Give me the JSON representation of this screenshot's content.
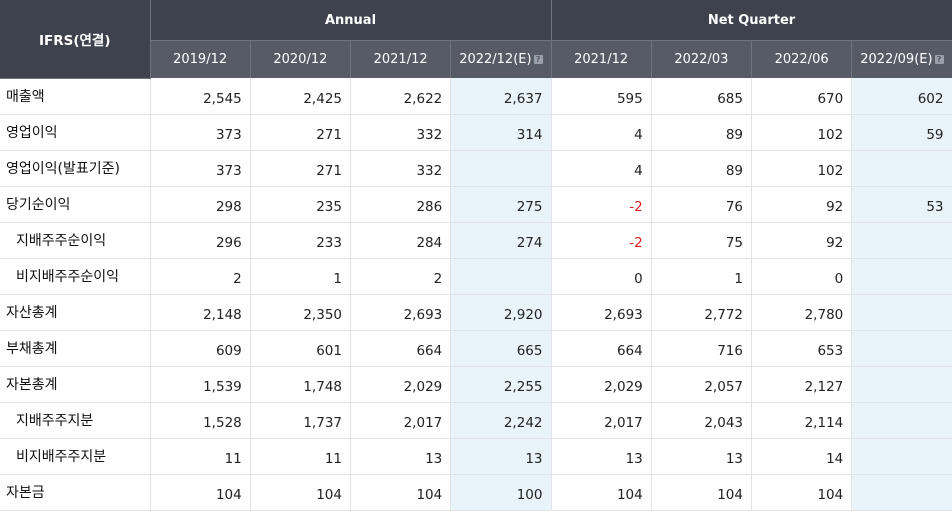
{
  "header": {
    "corner": "IFRS(연결)",
    "groups": [
      {
        "label": "Annual"
      },
      {
        "label": "Net Quarter"
      }
    ],
    "columns": [
      {
        "label": "2019/12",
        "estimate": false
      },
      {
        "label": "2020/12",
        "estimate": false
      },
      {
        "label": "2021/12",
        "estimate": false
      },
      {
        "label": "2022/12(E)",
        "estimate": true
      },
      {
        "label": "2021/12",
        "estimate": false
      },
      {
        "label": "2022/03",
        "estimate": false
      },
      {
        "label": "2022/06",
        "estimate": false
      },
      {
        "label": "2022/09(E)",
        "estimate": true
      }
    ],
    "help_icon": "?"
  },
  "rows": [
    {
      "label": "매출액",
      "sub": false,
      "values": [
        "2,545",
        "2,425",
        "2,622",
        "2,637",
        "595",
        "685",
        "670",
        "602"
      ]
    },
    {
      "label": "영업이익",
      "sub": false,
      "values": [
        "373",
        "271",
        "332",
        "314",
        "4",
        "89",
        "102",
        "59"
      ]
    },
    {
      "label": "영업이익(발표기준)",
      "sub": false,
      "values": [
        "373",
        "271",
        "332",
        "",
        "4",
        "89",
        "102",
        ""
      ]
    },
    {
      "label": "당기순이익",
      "sub": false,
      "values": [
        "298",
        "235",
        "286",
        "275",
        "-2",
        "76",
        "92",
        "53"
      ]
    },
    {
      "label": "지배주주순이익",
      "sub": true,
      "values": [
        "296",
        "233",
        "284",
        "274",
        "-2",
        "75",
        "92",
        ""
      ]
    },
    {
      "label": "비지배주주순이익",
      "sub": true,
      "values": [
        "2",
        "1",
        "2",
        "",
        "0",
        "1",
        "0",
        ""
      ]
    },
    {
      "label": "자산총계",
      "sub": false,
      "values": [
        "2,148",
        "2,350",
        "2,693",
        "2,920",
        "2,693",
        "2,772",
        "2,780",
        ""
      ]
    },
    {
      "label": "부채총계",
      "sub": false,
      "values": [
        "609",
        "601",
        "664",
        "665",
        "664",
        "716",
        "653",
        ""
      ]
    },
    {
      "label": "자본총계",
      "sub": false,
      "values": [
        "1,539",
        "1,748",
        "2,029",
        "2,255",
        "2,029",
        "2,057",
        "2,127",
        ""
      ]
    },
    {
      "label": "지배주주지분",
      "sub": true,
      "values": [
        "1,528",
        "1,737",
        "2,017",
        "2,242",
        "2,017",
        "2,043",
        "2,114",
        ""
      ]
    },
    {
      "label": "비지배주주지분",
      "sub": true,
      "values": [
        "11",
        "11",
        "13",
        "13",
        "13",
        "13",
        "14",
        ""
      ]
    },
    {
      "label": "자본금",
      "sub": false,
      "values": [
        "104",
        "104",
        "104",
        "100",
        "104",
        "104",
        "104",
        ""
      ]
    }
  ],
  "colors": {
    "header_dark": "#3d424d",
    "header_sub": "#565b66",
    "estimate_bg": "#e8f4fa",
    "negative": "#e02020"
  }
}
